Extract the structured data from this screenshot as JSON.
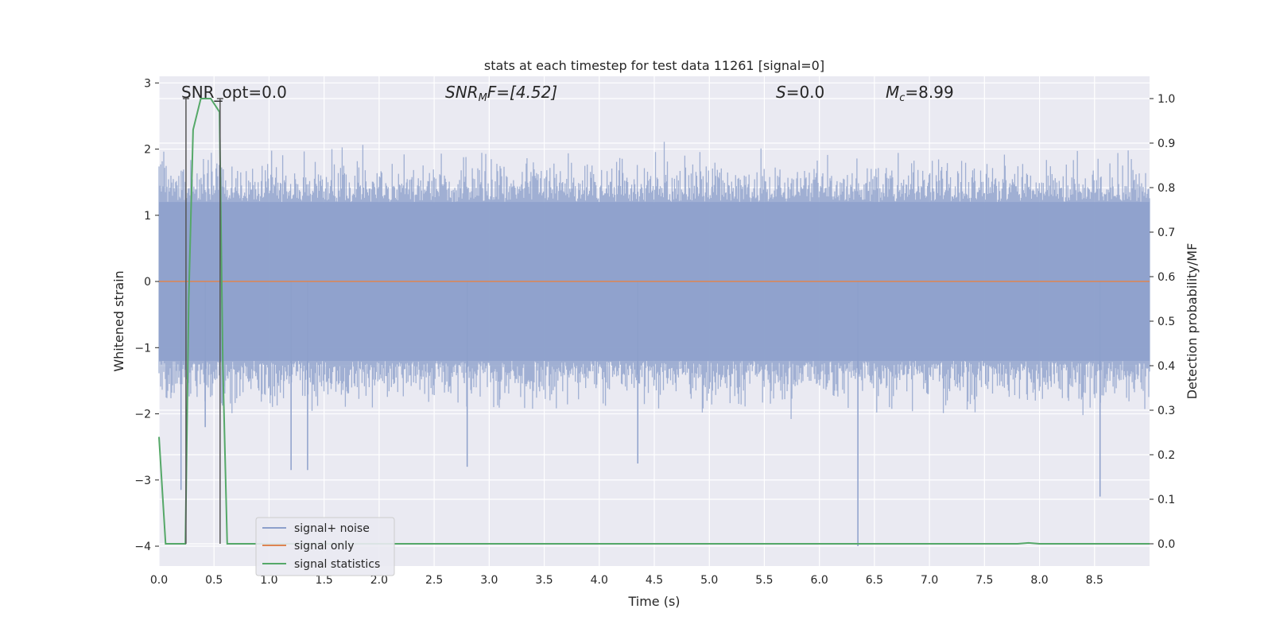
{
  "chart_data": {
    "type": "line",
    "title": "stats at each timestep for test data 11261 [signal=0]",
    "xlabel": "Time (s)",
    "ylabel": "Whitened strain",
    "y2label": "Detection probability/MF",
    "xlim": [
      0.0,
      9.0
    ],
    "ylim": [
      -4.3,
      3.1
    ],
    "y2lim": [
      -0.05,
      1.05
    ],
    "x_ticks": [
      "0.0",
      "0.5",
      "1.0",
      "1.5",
      "2.0",
      "2.5",
      "3.0",
      "3.5",
      "4.0",
      "4.5",
      "5.0",
      "5.5",
      "6.0",
      "6.5",
      "7.0",
      "7.5",
      "8.0",
      "8.5"
    ],
    "y_ticks": [
      "3",
      "2",
      "1",
      "0",
      "−1",
      "−2",
      "−3",
      "−4"
    ],
    "y2_ticks": [
      "1.0",
      "0.9",
      "0.8",
      "0.7",
      "0.6",
      "0.5",
      "0.4",
      "0.3",
      "0.2",
      "0.1",
      "0.0"
    ],
    "grid": true,
    "legend_position": "lower-left",
    "annotations": {
      "snr_opt": "SNR_opt=0.0",
      "snr_mf_label": "SNR",
      "snr_mf_sub": "M",
      "snr_mf_rest": "F=[4.52]",
      "s_label": "S",
      "s_rest": "=0.0",
      "mc_label": "M",
      "mc_sub": "c",
      "mc_rest": "=8.99"
    },
    "series": [
      {
        "name": "signal+ noise",
        "color": "#8da0cb",
        "description_range": [
          -2.0,
          2.0
        ],
        "outliers": [
          [
            0.2,
            -3.15
          ],
          [
            0.42,
            -2.2
          ],
          [
            1.2,
            -2.85
          ],
          [
            1.35,
            -2.85
          ],
          [
            2.8,
            -2.8
          ],
          [
            4.35,
            -2.75
          ],
          [
            6.35,
            -4.0
          ],
          [
            8.55,
            -3.25
          ]
        ]
      },
      {
        "name": "signal only",
        "color": "#dd8452",
        "x": [
          0.0,
          9.0
        ],
        "y": [
          0.0,
          0.0
        ]
      },
      {
        "name": "signal statistics",
        "color": "#55a868",
        "axis": "right",
        "x": [
          0.0,
          0.06,
          0.24,
          0.27,
          0.31,
          0.38,
          0.47,
          0.55,
          0.58,
          0.62,
          1.0,
          7.8,
          7.9,
          8.0,
          9.0
        ],
        "y": [
          0.24,
          0.0,
          0.0,
          0.55,
          0.93,
          1.0,
          1.0,
          0.97,
          0.4,
          0.0,
          0.0,
          0.0,
          0.002,
          0.0,
          0.0
        ]
      }
    ],
    "vertical_markers": {
      "color": "#555555",
      "x": [
        0.245,
        0.555
      ]
    }
  }
}
